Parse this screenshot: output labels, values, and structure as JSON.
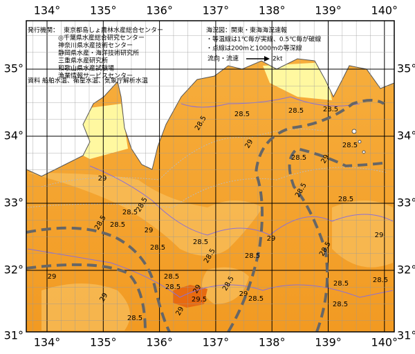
{
  "axes": {
    "longitude_labels": [
      "134°",
      "135°",
      "136°",
      "137°",
      "138°",
      "139°",
      "140°"
    ],
    "latitude_labels": [
      "35°",
      "34°",
      "33°",
      "32°",
      "31°"
    ]
  },
  "issuer": {
    "label": "発行機関：",
    "lead": "東京都島しょ農林水産総合センター",
    "members": [
      "◎千葉県水産総合研究センター",
      "神奈川県水産技術センター",
      "静岡県水産・海洋技術研究所",
      "三重県水産研究所",
      "和歌山県水産試験場",
      "漁業情報サービスセンター"
    ],
    "source": "資料 船舶水温、衛星水温、気象庁解析水温"
  },
  "legend": {
    "title": "海況図：関東・東海海況速報",
    "notes": [
      "・等温線は1℃毎が実線、0.5℃毎が破線",
      "・点線は200mと1000mの等深線"
    ],
    "current_label": "流向・流速",
    "current_scale": "2kt"
  },
  "contour_labels": [
    "28.5",
    "28.5",
    "28.5",
    "28.5",
    "29",
    "28.5",
    "28.5",
    "29",
    "29",
    "28.5",
    "28.5",
    "28.5",
    "29",
    "28.5",
    "28.5",
    "28.5",
    "28.5",
    "28.5",
    "29",
    "28.5",
    "28.5",
    "29",
    "28.5",
    "28.5",
    "29",
    "29",
    "28.5",
    "28.5",
    "28.5",
    "29",
    "28.5",
    "29",
    "29.5",
    "28.5",
    "29",
    "28.5",
    "28.5"
  ]
}
